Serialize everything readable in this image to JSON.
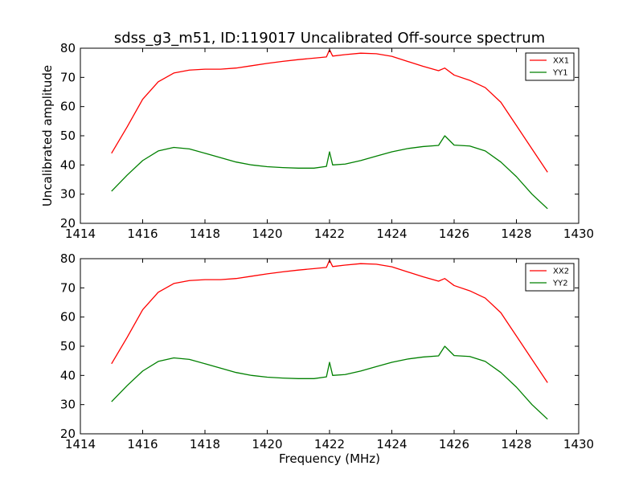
{
  "title": "sdss_g3_m51, ID:119017 Uncalibrated Off-source spectrum",
  "colors": {
    "xx": "#ff0000",
    "yy": "#008000",
    "axes": "#000000",
    "background": "#ffffff"
  },
  "chart_data": [
    {
      "type": "line",
      "title": "sdss_g3_m51, ID:119017 Uncalibrated Off-source spectrum",
      "xlabel": "",
      "ylabel": "Uncalibrated amplitude",
      "xlim": [
        1414,
        1430
      ],
      "ylim": [
        20,
        80
      ],
      "xticks": [
        "1414",
        "1416",
        "1418",
        "1420",
        "1422",
        "1424",
        "1426",
        "1428",
        "1430"
      ],
      "yticks": [
        "20",
        "30",
        "40",
        "50",
        "60",
        "70",
        "80"
      ],
      "grid": false,
      "legend": "top-right",
      "series": [
        {
          "name": "XX1",
          "color": "#ff0000",
          "x": [
            1415.0,
            1415.5,
            1416.0,
            1416.5,
            1417.0,
            1417.5,
            1418.0,
            1418.5,
            1419.0,
            1419.5,
            1420.0,
            1420.5,
            1421.0,
            1421.5,
            1421.9,
            1422.0,
            1422.1,
            1422.5,
            1423.0,
            1423.5,
            1424.0,
            1424.5,
            1425.0,
            1425.5,
            1425.7,
            1426.0,
            1426.5,
            1427.0,
            1427.5,
            1428.0,
            1428.5,
            1429.0
          ],
          "y": [
            44.0,
            53.0,
            62.5,
            68.5,
            71.5,
            72.5,
            72.8,
            72.8,
            73.2,
            74.0,
            74.8,
            75.5,
            76.1,
            76.6,
            77.0,
            79.5,
            77.3,
            77.8,
            78.3,
            78.1,
            77.2,
            75.5,
            73.8,
            72.3,
            73.2,
            70.8,
            69.0,
            66.5,
            61.5,
            53.5,
            45.5,
            37.5
          ]
        },
        {
          "name": "YY1",
          "color": "#008000",
          "x": [
            1415.0,
            1415.5,
            1416.0,
            1416.5,
            1417.0,
            1417.5,
            1418.0,
            1418.5,
            1419.0,
            1419.5,
            1420.0,
            1420.5,
            1421.0,
            1421.5,
            1421.9,
            1422.0,
            1422.1,
            1422.5,
            1423.0,
            1423.5,
            1424.0,
            1424.5,
            1425.0,
            1425.5,
            1425.7,
            1426.0,
            1426.5,
            1427.0,
            1427.5,
            1428.0,
            1428.5,
            1429.0
          ],
          "y": [
            31.0,
            36.5,
            41.5,
            44.8,
            46.0,
            45.5,
            44.0,
            42.5,
            41.0,
            40.0,
            39.4,
            39.1,
            38.9,
            38.9,
            39.5,
            44.5,
            40.0,
            40.3,
            41.5,
            43.0,
            44.5,
            45.6,
            46.3,
            46.7,
            50.0,
            46.8,
            46.5,
            44.8,
            41.0,
            36.0,
            30.0,
            25.0
          ]
        }
      ]
    },
    {
      "type": "line",
      "title": "",
      "xlabel": "Frequency (MHz)",
      "ylabel": "",
      "xlim": [
        1414,
        1430
      ],
      "ylim": [
        20,
        80
      ],
      "xticks": [
        "1414",
        "1416",
        "1418",
        "1420",
        "1422",
        "1424",
        "1426",
        "1428",
        "1430"
      ],
      "yticks": [
        "20",
        "30",
        "40",
        "50",
        "60",
        "70",
        "80"
      ],
      "grid": false,
      "legend": "top-right",
      "series": [
        {
          "name": "XX2",
          "color": "#ff0000",
          "x": [
            1415.0,
            1415.5,
            1416.0,
            1416.5,
            1417.0,
            1417.5,
            1418.0,
            1418.5,
            1419.0,
            1419.5,
            1420.0,
            1420.5,
            1421.0,
            1421.5,
            1421.9,
            1422.0,
            1422.1,
            1422.5,
            1423.0,
            1423.5,
            1424.0,
            1424.5,
            1425.0,
            1425.5,
            1425.7,
            1426.0,
            1426.5,
            1427.0,
            1427.5,
            1428.0,
            1428.5,
            1429.0
          ],
          "y": [
            44.0,
            53.0,
            62.5,
            68.5,
            71.5,
            72.5,
            72.8,
            72.8,
            73.2,
            74.0,
            74.8,
            75.5,
            76.1,
            76.6,
            77.0,
            79.5,
            77.3,
            77.8,
            78.3,
            78.1,
            77.2,
            75.5,
            73.8,
            72.3,
            73.2,
            70.8,
            69.0,
            66.5,
            61.5,
            53.5,
            45.5,
            37.5
          ]
        },
        {
          "name": "YY2",
          "color": "#008000",
          "x": [
            1415.0,
            1415.5,
            1416.0,
            1416.5,
            1417.0,
            1417.5,
            1418.0,
            1418.5,
            1419.0,
            1419.5,
            1420.0,
            1420.5,
            1421.0,
            1421.5,
            1421.9,
            1422.0,
            1422.1,
            1422.5,
            1423.0,
            1423.5,
            1424.0,
            1424.5,
            1425.0,
            1425.5,
            1425.7,
            1426.0,
            1426.5,
            1427.0,
            1427.5,
            1428.0,
            1428.5,
            1429.0
          ],
          "y": [
            31.0,
            36.5,
            41.5,
            44.8,
            46.0,
            45.5,
            44.0,
            42.5,
            41.0,
            40.0,
            39.4,
            39.1,
            38.9,
            38.9,
            39.5,
            44.5,
            40.0,
            40.3,
            41.5,
            43.0,
            44.5,
            45.6,
            46.3,
            46.7,
            50.0,
            46.8,
            46.5,
            44.8,
            41.0,
            36.0,
            30.0,
            25.0
          ]
        }
      ]
    }
  ]
}
